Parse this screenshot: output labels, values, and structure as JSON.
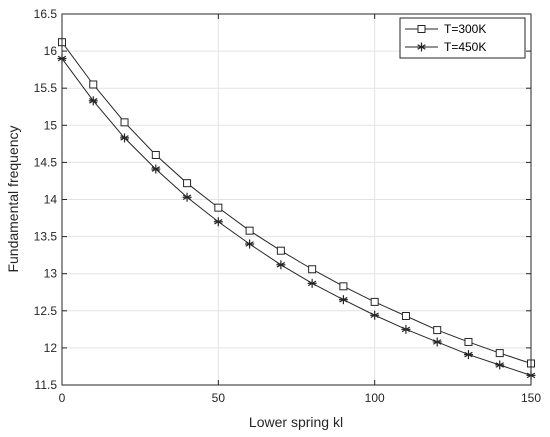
{
  "chart_data": {
    "type": "line",
    "title": "",
    "xlabel": "Lower spring kl",
    "ylabel": "Fundamental frequency",
    "xlim": [
      0,
      150
    ],
    "ylim": [
      11.5,
      16.5
    ],
    "grid": true,
    "legend_position": "top-right",
    "x_ticks": [
      0,
      50,
      100,
      150
    ],
    "y_ticks": [
      11.5,
      12,
      12.5,
      13,
      13.5,
      14,
      14.5,
      15,
      15.5,
      16,
      16.5
    ],
    "x_tick_labels": [
      "0",
      "50",
      "100",
      "150"
    ],
    "y_tick_labels": [
      "11.5",
      "12",
      "12.5",
      "13",
      "13.5",
      "14",
      "14.5",
      "15",
      "15.5",
      "16",
      "16.5"
    ],
    "x": [
      0,
      10,
      20,
      30,
      40,
      50,
      60,
      70,
      80,
      90,
      100,
      110,
      120,
      130,
      140,
      150
    ],
    "series": [
      {
        "name": "T=300K",
        "marker": "square",
        "color": "#262626",
        "values": [
          16.12,
          15.55,
          15.04,
          14.6,
          14.22,
          13.89,
          13.58,
          13.31,
          13.06,
          12.83,
          12.62,
          12.43,
          12.24,
          12.08,
          11.93,
          11.79
        ]
      },
      {
        "name": "T=450K",
        "marker": "asterisk",
        "color": "#262626",
        "values": [
          15.9,
          15.33,
          14.83,
          14.41,
          14.03,
          13.7,
          13.4,
          13.12,
          12.87,
          12.65,
          12.44,
          12.25,
          12.08,
          11.91,
          11.77,
          11.63
        ]
      }
    ]
  }
}
